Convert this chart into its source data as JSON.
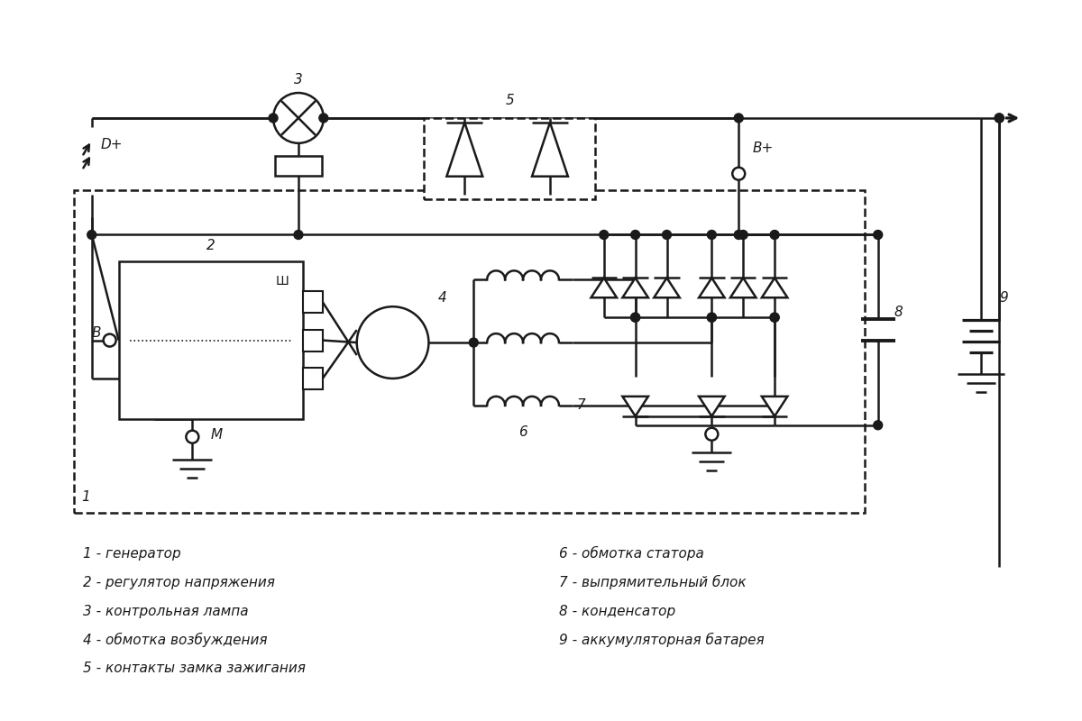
{
  "bg": "#ffffff",
  "lc": "#1a1a1a",
  "lw": 1.8,
  "fig_w": 12,
  "fig_h": 8,
  "legend": [
    "1 - генератор",
    "2 - регулятор напряжения",
    "3 - контрольная лампа",
    "4 - обмотка возбуждения",
    "5 - контакты замка зажигания",
    "6 - обмотка статора",
    "7 - выпрямительный блок",
    "8 - конденсатор",
    "9 - аккумуляторная батарея"
  ]
}
